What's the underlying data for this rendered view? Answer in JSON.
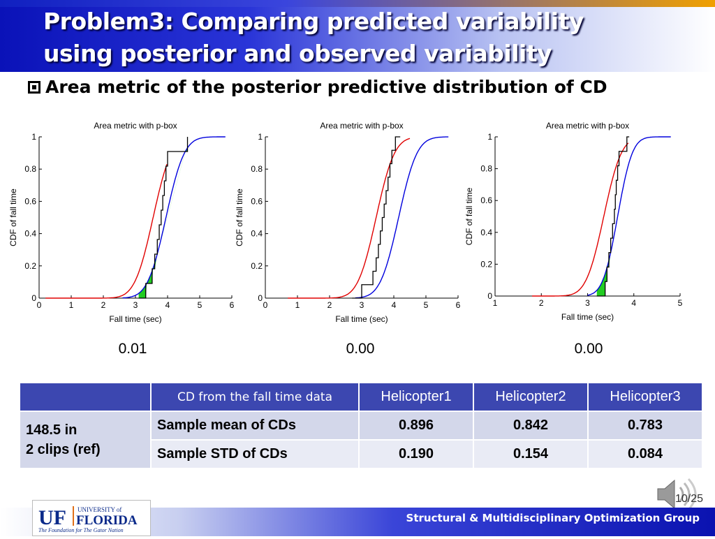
{
  "slide": {
    "title_line1": "Problem3: Comparing predicted variability",
    "title_line2": "using posterior and observed variability",
    "bullet": "Area metric of the posterior predictive distribution of CD",
    "page": "10/25",
    "footer": "Structural & Multidisciplinary Optimization Group"
  },
  "logo": {
    "uf": "UF",
    "university_of": "UNIVERSITY of",
    "florida": "FLORIDA",
    "tagline": "The Foundation for The Gator Nation"
  },
  "chart_data": [
    {
      "type": "line",
      "title": "Area metric with p-box",
      "xlabel": "Fall time (sec)",
      "ylabel": "CDF of fall time",
      "xlim": [
        0,
        6
      ],
      "ylim": [
        0,
        1
      ],
      "xticks": [
        "0",
        "1",
        "2",
        "3",
        "4",
        "5",
        "6"
      ],
      "yticks": [
        "0",
        "0.2",
        "0.4",
        "0.6",
        "0.8",
        "1"
      ],
      "series": [
        {
          "name": "lower bound CDF (red)",
          "color": "#e00000",
          "mean": 3.55,
          "sd": 0.45,
          "x_range": [
            0.2,
            4.0
          ]
        },
        {
          "name": "upper bound CDF (blue)",
          "color": "#0000dd",
          "mean": 3.95,
          "sd": 0.45,
          "x_range": [
            2.6,
            5.8
          ]
        },
        {
          "name": "empirical CDF (black)",
          "color": "#000000",
          "step_x": [
            3.32,
            3.52,
            3.6,
            3.68,
            3.74,
            3.8,
            3.85,
            3.9,
            3.95,
            4.0,
            4.62
          ],
          "x_range": [
            3.1,
            4.62
          ]
        }
      ],
      "area_metric": "0.01"
    },
    {
      "type": "line",
      "title": "Area metric with p-box",
      "xlabel": "Fall time (sec)",
      "ylabel": "CDF of fall time",
      "xlim": [
        0,
        6
      ],
      "ylim": [
        0,
        1
      ],
      "xticks": [
        "0",
        "1",
        "2",
        "3",
        "4",
        "5",
        "6"
      ],
      "yticks": [
        "0",
        "0.2",
        "0.4",
        "0.6",
        "0.8",
        "1"
      ],
      "series": [
        {
          "name": "lower bound CDF (red)",
          "color": "#e00000",
          "mean": 3.45,
          "sd": 0.45,
          "x_range": [
            0.7,
            4.5
          ]
        },
        {
          "name": "upper bound CDF (blue)",
          "color": "#0000dd",
          "mean": 4.15,
          "sd": 0.45,
          "x_range": [
            2.8,
            5.7
          ]
        },
        {
          "name": "empirical CDF (black)",
          "color": "#000000",
          "step_x": [
            3.0,
            3.35,
            3.45,
            3.52,
            3.58,
            3.64,
            3.7,
            3.76,
            3.82,
            3.88,
            3.94,
            4.05
          ],
          "x_range": [
            2.7,
            4.2
          ]
        }
      ],
      "area_metric": "0.00"
    },
    {
      "type": "line",
      "title": "Area metric with p-box",
      "xlabel": "Fall time (sec)",
      "ylabel": "CDF of fall time",
      "xlim": [
        1,
        5
      ],
      "ylim": [
        0,
        1
      ],
      "xticks": [
        "1",
        "2",
        "3",
        "4",
        "5"
      ],
      "yticks": [
        "0",
        "0.2",
        "0.4",
        "0.6",
        "0.8",
        "1"
      ],
      "series": [
        {
          "name": "lower bound CDF (red)",
          "color": "#e00000",
          "mean": 3.35,
          "sd": 0.3,
          "x_range": [
            1.8,
            3.9
          ]
        },
        {
          "name": "upper bound CDF (blue)",
          "color": "#0000dd",
          "mean": 3.65,
          "sd": 0.25,
          "x_range": [
            3.0,
            4.8
          ]
        },
        {
          "name": "empirical CDF (black)",
          "color": "#000000",
          "step_x": [
            3.38,
            3.42,
            3.46,
            3.5,
            3.54,
            3.58,
            3.6,
            3.62,
            3.65,
            3.68,
            3.85
          ],
          "x_range": [
            3.2,
            3.9
          ]
        }
      ],
      "area_metric": "0.00"
    }
  ],
  "table": {
    "headers": [
      "",
      "CD from the fall time data",
      "Helicopter1",
      "Helicopter2",
      "Helicopter3"
    ],
    "ref_line1": "148.5 in",
    "ref_line2": "2 clips (ref)",
    "rows": [
      {
        "label": "Sample mean of CDs",
        "values": [
          "0.896",
          "0.842",
          "0.783"
        ]
      },
      {
        "label": "Sample STD of CDs",
        "values": [
          "0.190",
          "0.154",
          "0.084"
        ]
      }
    ]
  }
}
